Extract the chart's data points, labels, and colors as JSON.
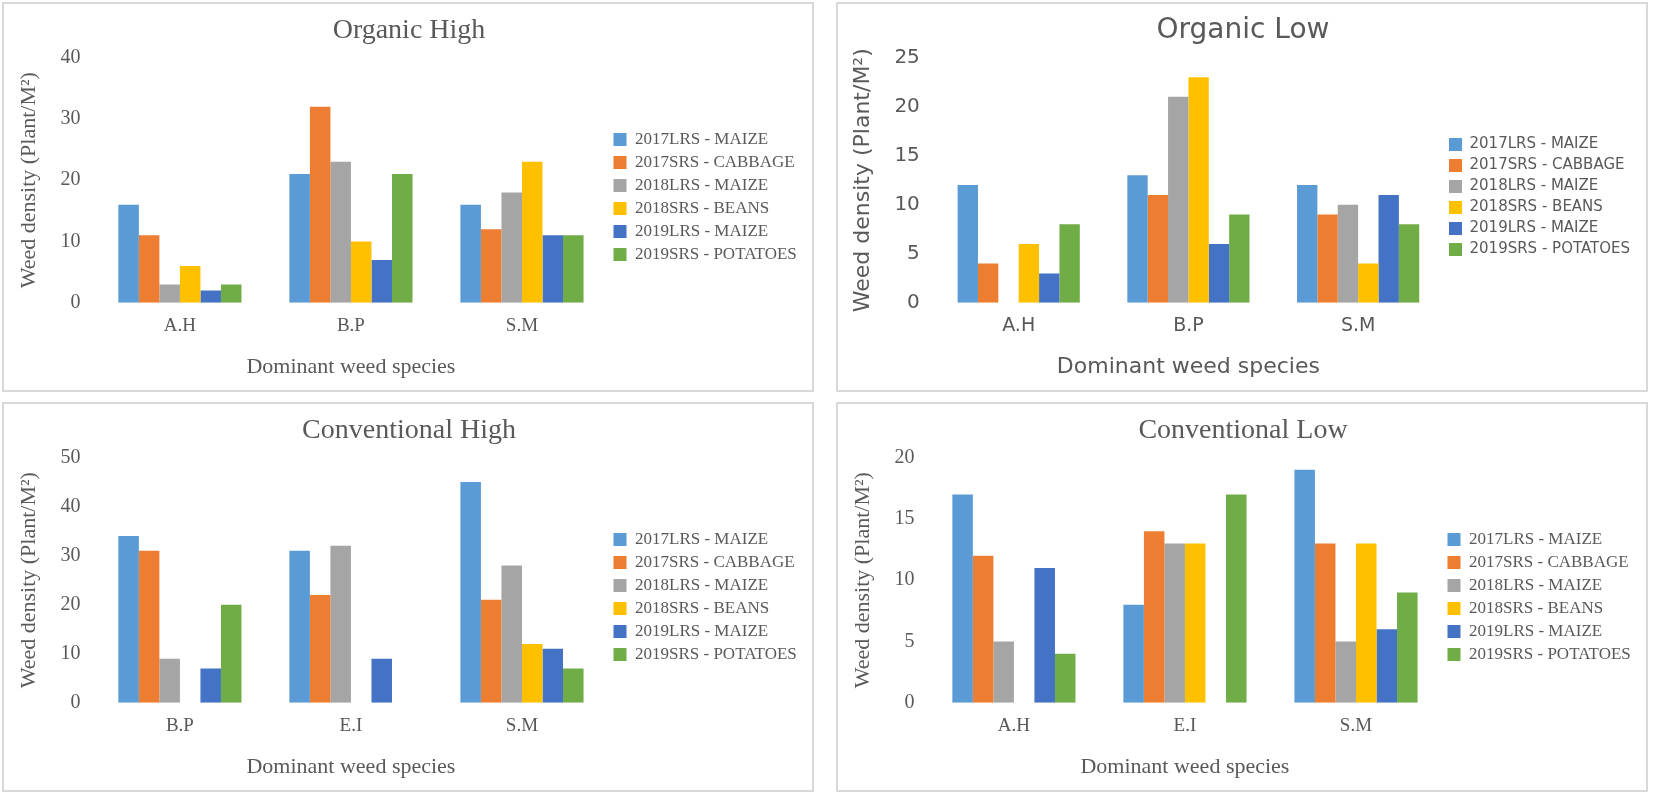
{
  "chart_data": [
    {
      "type": "bar",
      "title": "Organic High",
      "xlabel": "Dominant weed species",
      "ylabel": "Weed density (Plant/M²)",
      "categories": [
        "A.H",
        "B.P",
        "S.M"
      ],
      "ylim": [
        0,
        40
      ],
      "yticks": [
        0,
        10,
        20,
        30,
        40
      ],
      "legend": "right",
      "series": [
        {
          "name": "2017LRS - MAIZE",
          "color": "#5b9bd5",
          "values": [
            16,
            21,
            16
          ]
        },
        {
          "name": "2017SRS - CABBAGE",
          "color": "#ed7d31",
          "values": [
            11,
            32,
            12
          ]
        },
        {
          "name": "2018LRS - MAIZE",
          "color": "#a5a5a5",
          "values": [
            3,
            23,
            18
          ]
        },
        {
          "name": "2018SRS - BEANS",
          "color": "#ffc000",
          "values": [
            6,
            10,
            23
          ]
        },
        {
          "name": "2019LRS - MAIZE",
          "color": "#4472c4",
          "values": [
            2,
            7,
            11
          ]
        },
        {
          "name": "2019SRS - POTATOES",
          "color": "#70ad47",
          "values": [
            3,
            21,
            11
          ]
        }
      ]
    },
    {
      "type": "bar",
      "title": "Organic Low",
      "xlabel": "Dominant weed species",
      "ylabel": "Weed density (Plant/M²)",
      "categories": [
        "A.H",
        "B.P",
        "S.M"
      ],
      "ylim": [
        0,
        25
      ],
      "yticks": [
        0,
        5,
        10,
        15,
        20,
        25
      ],
      "legend": "right",
      "series": [
        {
          "name": "2017LRS - MAIZE",
          "color": "#5b9bd5",
          "values": [
            12,
            13,
            12
          ]
        },
        {
          "name": "2017SRS - CABBAGE",
          "color": "#ed7d31",
          "values": [
            4,
            11,
            9
          ]
        },
        {
          "name": "2018LRS - MAIZE",
          "color": "#a5a5a5",
          "values": [
            0,
            21,
            10
          ]
        },
        {
          "name": "2018SRS - BEANS",
          "color": "#ffc000",
          "values": [
            6,
            23,
            4
          ]
        },
        {
          "name": "2019LRS - MAIZE",
          "color": "#4472c4",
          "values": [
            3,
            6,
            11
          ]
        },
        {
          "name": "2019SRS - POTATOES",
          "color": "#70ad47",
          "values": [
            8,
            9,
            8
          ]
        }
      ]
    },
    {
      "type": "bar",
      "title": "Conventional High",
      "xlabel": "Dominant weed species",
      "ylabel": "Weed density (Plant/M²)",
      "categories": [
        "B.P",
        "E.I",
        "S.M"
      ],
      "ylim": [
        0,
        50
      ],
      "yticks": [
        0,
        10,
        20,
        30,
        40,
        50
      ],
      "legend": "right",
      "series": [
        {
          "name": "2017LRS - MAIZE",
          "color": "#5b9bd5",
          "values": [
            34,
            31,
            45
          ]
        },
        {
          "name": "2017SRS - CABBAGE",
          "color": "#ed7d31",
          "values": [
            31,
            22,
            21
          ]
        },
        {
          "name": "2018LRS - MAIZE",
          "color": "#a5a5a5",
          "values": [
            9,
            32,
            28
          ]
        },
        {
          "name": "2018SRS - BEANS",
          "color": "#ffc000",
          "values": [
            0,
            0,
            12
          ]
        },
        {
          "name": "2019LRS - MAIZE",
          "color": "#4472c4",
          "values": [
            7,
            9,
            11
          ]
        },
        {
          "name": "2019SRS - POTATOES",
          "color": "#70ad47",
          "values": [
            20,
            0,
            7
          ]
        }
      ]
    },
    {
      "type": "bar",
      "title": "Conventional Low",
      "xlabel": "Dominant weed species",
      "ylabel": "Weed density (Plant/M²)",
      "categories": [
        "A.H",
        "E.I",
        "S.M"
      ],
      "ylim": [
        0,
        20
      ],
      "yticks": [
        0,
        5,
        10,
        15,
        20
      ],
      "legend": "right",
      "series": [
        {
          "name": "2017LRS - MAIZE",
          "color": "#5b9bd5",
          "values": [
            17,
            8,
            19
          ]
        },
        {
          "name": "2017SRS - CABBAGE",
          "color": "#ed7d31",
          "values": [
            12,
            14,
            13
          ]
        },
        {
          "name": "2018LRS - MAIZE",
          "color": "#a5a5a5",
          "values": [
            5,
            13,
            5
          ]
        },
        {
          "name": "2018SRS - BEANS",
          "color": "#ffc000",
          "values": [
            0,
            13,
            13
          ]
        },
        {
          "name": "2019LRS - MAIZE",
          "color": "#4472c4",
          "values": [
            11,
            0,
            6
          ]
        },
        {
          "name": "2019SRS - POTATOES",
          "color": "#70ad47",
          "values": [
            4,
            17,
            9
          ]
        }
      ]
    }
  ]
}
